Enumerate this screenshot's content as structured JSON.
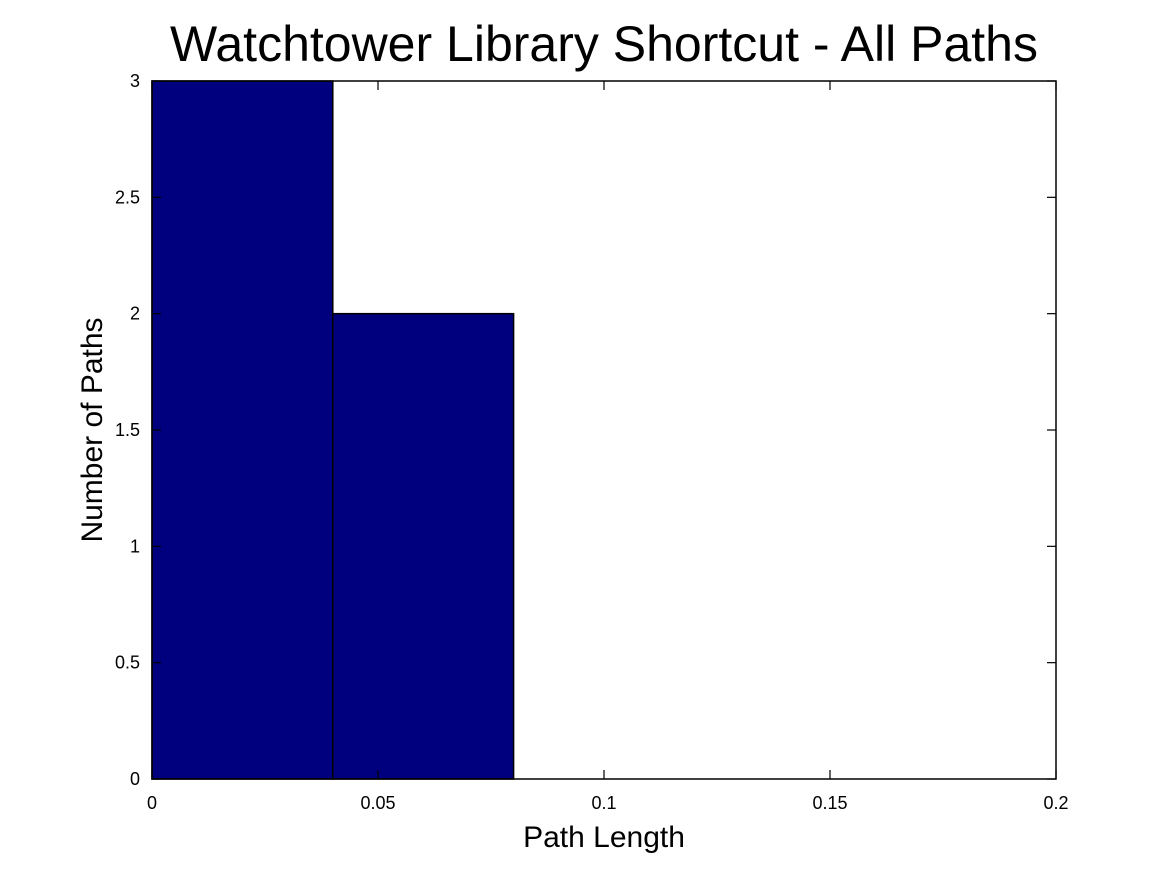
{
  "chart_data": {
    "type": "bar",
    "title": "Watchtower Library Shortcut - All Paths",
    "xlabel": "Path Length",
    "ylabel": "Number of Paths",
    "xlim": [
      0,
      0.2
    ],
    "ylim": [
      0,
      3
    ],
    "bins": [
      {
        "x_start": 0,
        "x_end": 0.04,
        "value": 3
      },
      {
        "x_start": 0.04,
        "x_end": 0.08,
        "value": 2
      }
    ],
    "x_ticks": [
      {
        "value": 0,
        "label": "0"
      },
      {
        "value": 0.05,
        "label": "0.05"
      },
      {
        "value": 0.1,
        "label": "0.1"
      },
      {
        "value": 0.15,
        "label": "0.15"
      },
      {
        "value": 0.2,
        "label": "0.2"
      }
    ],
    "y_ticks": [
      {
        "value": 0,
        "label": "0"
      },
      {
        "value": 0.5,
        "label": "0.5"
      },
      {
        "value": 1,
        "label": "1"
      },
      {
        "value": 1.5,
        "label": "1.5"
      },
      {
        "value": 2,
        "label": "2"
      },
      {
        "value": 2.5,
        "label": "2.5"
      },
      {
        "value": 3,
        "label": "3"
      }
    ],
    "grid": false,
    "bar_color": "#00007f",
    "bar_edge_color": "#000000"
  }
}
